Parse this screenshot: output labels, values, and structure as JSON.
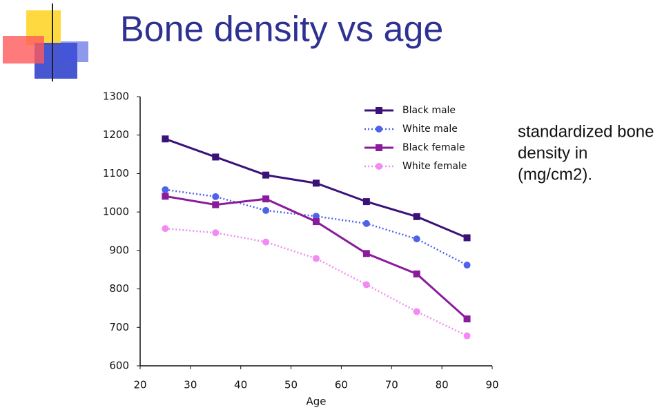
{
  "title": "Bone density vs age",
  "chart_data": {
    "type": "line",
    "x": [
      25,
      35,
      45,
      55,
      65,
      75,
      85
    ],
    "series": [
      {
        "name": "Black male",
        "color": "#3b1278",
        "dashed": false,
        "values": [
          1190,
          1143,
          1096,
          1075,
          1027,
          988,
          933
        ]
      },
      {
        "name": "White male",
        "color": "#4f63ea",
        "dashed": true,
        "values": [
          1058,
          1040,
          1004,
          989,
          970,
          930,
          862
        ]
      },
      {
        "name": "Black female",
        "color": "#8a1c9c",
        "dashed": false,
        "values": [
          1041,
          1019,
          1034,
          975,
          892,
          839,
          722
        ]
      },
      {
        "name": "White female",
        "color": "#f28af2",
        "dashed": true,
        "values": [
          957,
          946,
          922,
          879,
          811,
          741,
          678
        ]
      }
    ],
    "xlabel": "Age",
    "xlim": [
      20,
      90
    ],
    "xticks": [
      20,
      30,
      40,
      50,
      60,
      70,
      80,
      90
    ],
    "ylim": [
      600,
      1300
    ],
    "yticks": [
      600,
      700,
      800,
      900,
      1000,
      1100,
      1200,
      1300
    ],
    "legend": "upper right",
    "annotation": [
      "standardized bone",
      "density in",
      "(mg/cm2)."
    ]
  }
}
